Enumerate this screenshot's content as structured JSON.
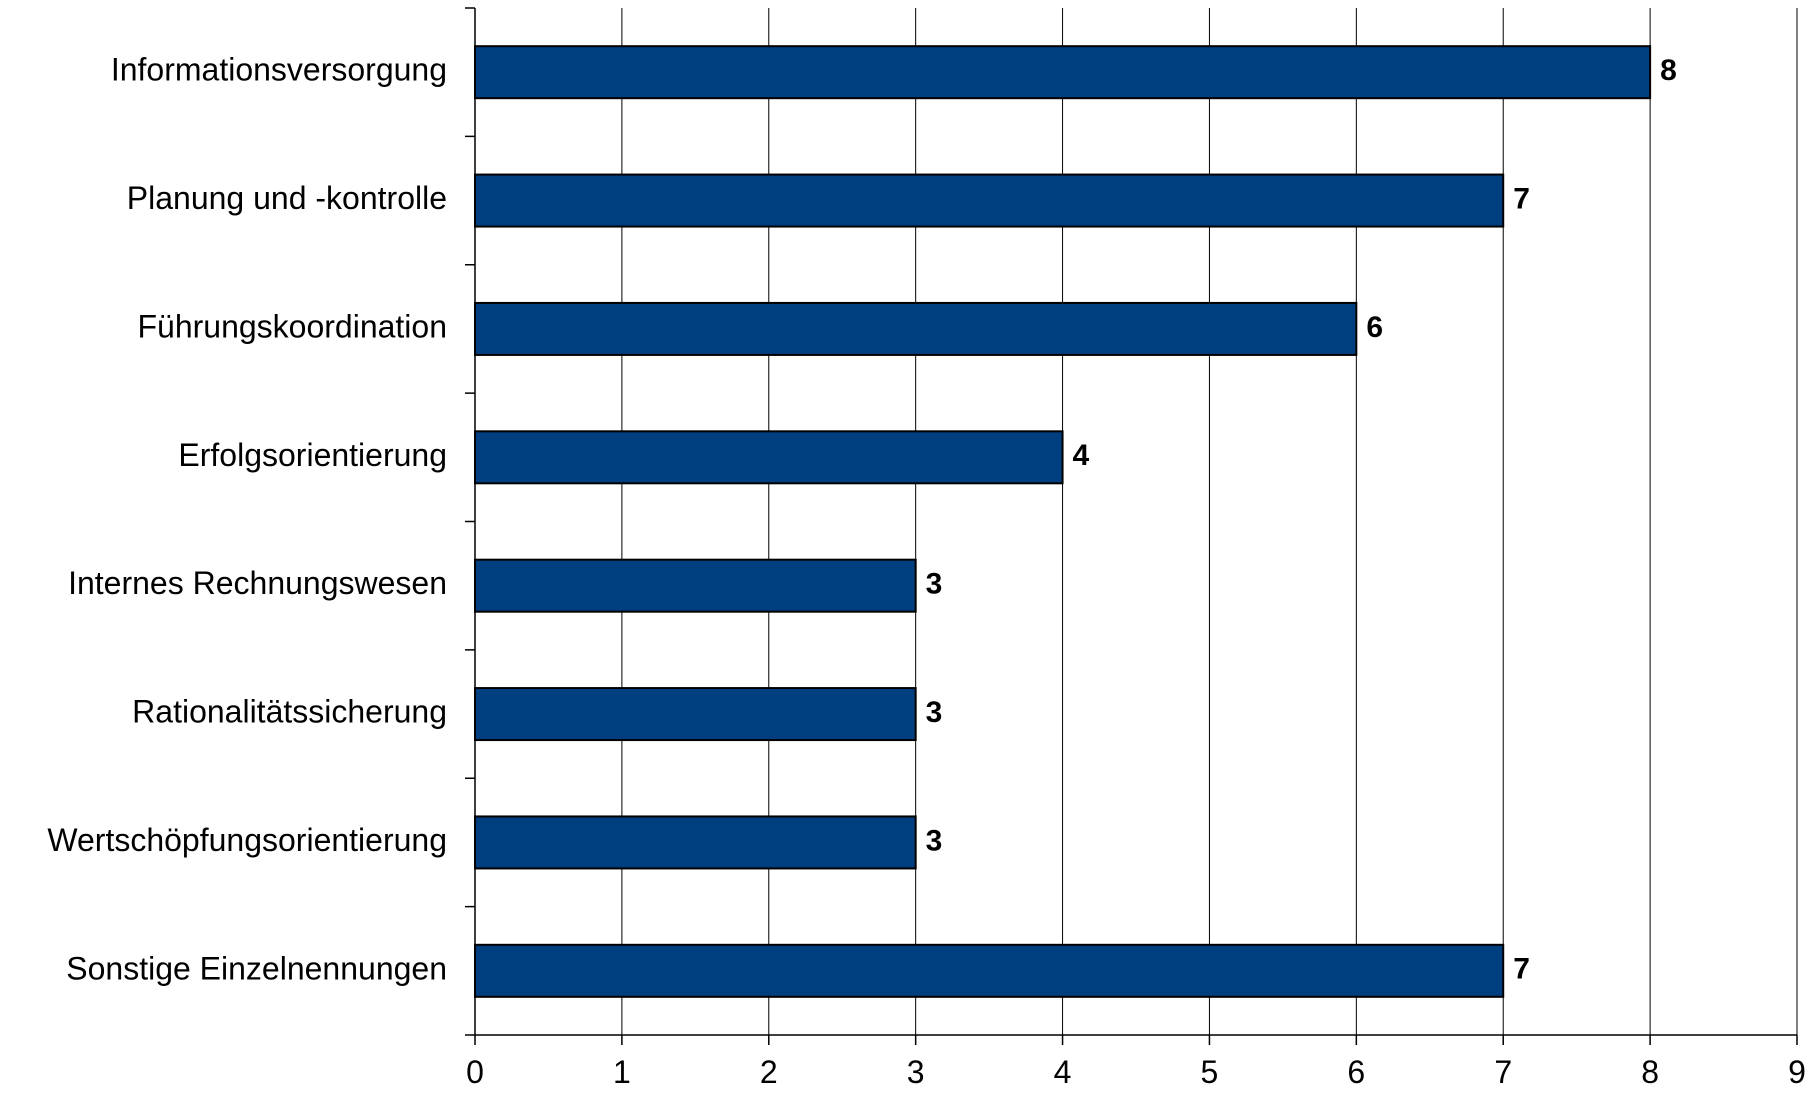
{
  "chart_data": {
    "type": "bar",
    "orientation": "horizontal",
    "categories": [
      "Informationsversorgung",
      "Planung und -kontrolle",
      "Führungskoordination",
      "Erfolgsorientierung",
      "Internes Rechnungswesen",
      "Rationalitätssicherung",
      "Wertschöpfungsorientierung",
      "Sonstige Einzelnennungen"
    ],
    "values": [
      8,
      7,
      6,
      4,
      3,
      3,
      3,
      7
    ],
    "value_labels": [
      "8",
      "7",
      "6",
      "4",
      "3",
      "3",
      "3",
      "7"
    ],
    "xlim": [
      0,
      9
    ],
    "x_ticks": [
      "0",
      "1",
      "2",
      "3",
      "4",
      "5",
      "6",
      "7",
      "8",
      "9"
    ],
    "title": "",
    "xlabel": "",
    "ylabel": "",
    "grid": "vertical",
    "bar_color": "#003f7f",
    "legend": "none"
  }
}
